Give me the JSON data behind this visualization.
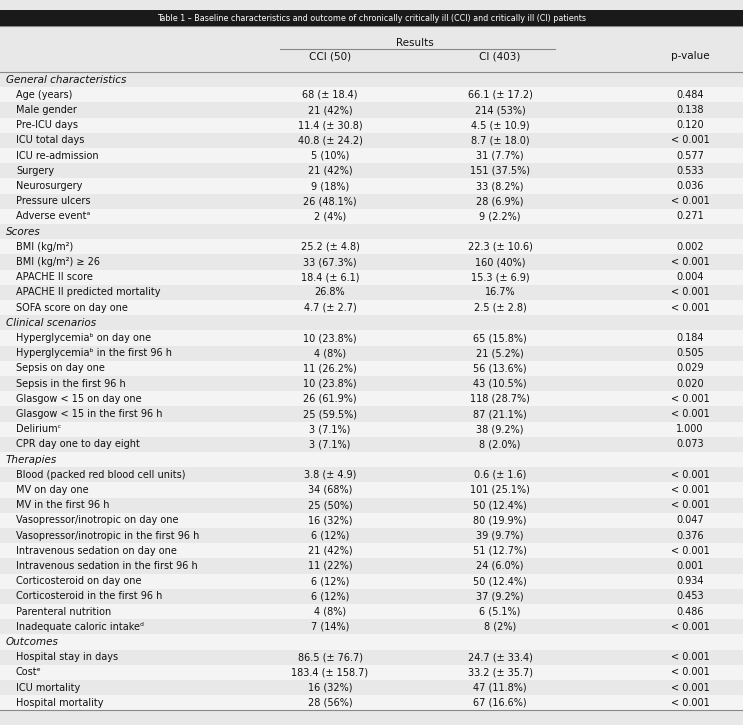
{
  "title": "Table 1 – Baseline characteristics and outcome of chronically critically ill (CCI) and critically ill (CI) patients",
  "header_results": "Results",
  "header_col1": "CCI (50)",
  "header_col2": "CI (403)",
  "header_pval": "p-value",
  "rows": [
    {
      "label": "General characteristics",
      "type": "section",
      "cci": "",
      "ci": "",
      "pval": ""
    },
    {
      "label": "  Age (years)",
      "type": "data",
      "cci": "68 (± 18.4)",
      "ci": "66.1 (± 17.2)",
      "pval": "0.484"
    },
    {
      "label": "  Male gender",
      "type": "data",
      "cci": "21 (42%)",
      "ci": "214 (53%)",
      "pval": "0.138"
    },
    {
      "label": "  Pre-ICU days",
      "type": "data",
      "cci": "11.4 (± 30.8)",
      "ci": "4.5 (± 10.9)",
      "pval": "0.120"
    },
    {
      "label": "  ICU total days",
      "type": "data",
      "cci": "40.8 (± 24.2)",
      "ci": "8.7 (± 18.0)",
      "pval": "< 0.001"
    },
    {
      "label": "  ICU re-admission",
      "type": "data",
      "cci": "5 (10%)",
      "ci": "31 (7.7%)",
      "pval": "0.577"
    },
    {
      "label": "  Surgery",
      "type": "data",
      "cci": "21 (42%)",
      "ci": "151 (37.5%)",
      "pval": "0.533"
    },
    {
      "label": "  Neurosurgery",
      "type": "data",
      "cci": "9 (18%)",
      "ci": "33 (8.2%)",
      "pval": "0.036"
    },
    {
      "label": "  Pressure ulcers",
      "type": "data",
      "cci": "26 (48.1%)",
      "ci": "28 (6.9%)",
      "pval": "< 0.001"
    },
    {
      "label": "  Adverse eventᵃ",
      "type": "data",
      "cci": "2 (4%)",
      "ci": "9 (2.2%)",
      "pval": "0.271"
    },
    {
      "label": "Scores",
      "type": "section",
      "cci": "",
      "ci": "",
      "pval": ""
    },
    {
      "label": "  BMI (kg/m²)",
      "type": "data",
      "cci": "25.2 (± 4.8)",
      "ci": "22.3 (± 10.6)",
      "pval": "0.002"
    },
    {
      "label": "  BMI (kg/m²) ≥ 26",
      "type": "data",
      "cci": "33 (67.3%)",
      "ci": "160 (40%)",
      "pval": "< 0.001"
    },
    {
      "label": "  APACHE II score",
      "type": "data",
      "cci": "18.4 (± 6.1)",
      "ci": "15.3 (± 6.9)",
      "pval": "0.004"
    },
    {
      "label": "  APACHE II predicted mortality",
      "type": "data",
      "cci": "26.8%",
      "ci": "16.7%",
      "pval": "< 0.001"
    },
    {
      "label": "  SOFA score on day one",
      "type": "data",
      "cci": "4.7 (± 2.7)",
      "ci": "2.5 (± 2.8)",
      "pval": "< 0.001"
    },
    {
      "label": "Clinical scenarios",
      "type": "section",
      "cci": "",
      "ci": "",
      "pval": ""
    },
    {
      "label": "  Hyperglycemiaᵇ on day one",
      "type": "data",
      "cci": "10 (23.8%)",
      "ci": "65 (15.8%)",
      "pval": "0.184"
    },
    {
      "label": "  Hyperglycemiaᵇ in the first 96 h",
      "type": "data",
      "cci": "4 (8%)",
      "ci": "21 (5.2%)",
      "pval": "0.505"
    },
    {
      "label": "  Sepsis on day one",
      "type": "data",
      "cci": "11 (26.2%)",
      "ci": "56 (13.6%)",
      "pval": "0.029"
    },
    {
      "label": "  Sepsis in the first 96 h",
      "type": "data",
      "cci": "10 (23.8%)",
      "ci": "43 (10.5%)",
      "pval": "0.020"
    },
    {
      "label": "  Glasgow < 15 on day one",
      "type": "data",
      "cci": "26 (61.9%)",
      "ci": "118 (28.7%)",
      "pval": "< 0.001"
    },
    {
      "label": "  Glasgow < 15 in the first 96 h",
      "type": "data",
      "cci": "25 (59.5%)",
      "ci": "87 (21.1%)",
      "pval": "< 0.001"
    },
    {
      "label": "  Deliriumᶜ",
      "type": "data",
      "cci": "3 (7.1%)",
      "ci": "38 (9.2%)",
      "pval": "1.000"
    },
    {
      "label": "  CPR day one to day eight",
      "type": "data",
      "cci": "3 (7.1%)",
      "ci": "8 (2.0%)",
      "pval": "0.073"
    },
    {
      "label": "Therapies",
      "type": "section",
      "cci": "",
      "ci": "",
      "pval": ""
    },
    {
      "label": "  Blood (packed red blood cell units)",
      "type": "data",
      "cci": "3.8 (± 4.9)",
      "ci": "0.6 (± 1.6)",
      "pval": "< 0.001"
    },
    {
      "label": "  MV on day one",
      "type": "data",
      "cci": "34 (68%)",
      "ci": "101 (25.1%)",
      "pval": "< 0.001"
    },
    {
      "label": "  MV in the first 96 h",
      "type": "data",
      "cci": "25 (50%)",
      "ci": "50 (12.4%)",
      "pval": "< 0.001"
    },
    {
      "label": "  Vasopressor/inotropic on day one",
      "type": "data",
      "cci": "16 (32%)",
      "ci": "80 (19.9%)",
      "pval": "0.047"
    },
    {
      "label": "  Vasopressor/inotropic in the first 96 h",
      "type": "data",
      "cci": "6 (12%)",
      "ci": "39 (9.7%)",
      "pval": "0.376"
    },
    {
      "label": "  Intravenous sedation on day one",
      "type": "data",
      "cci": "21 (42%)",
      "ci": "51 (12.7%)",
      "pval": "< 0.001"
    },
    {
      "label": "  Intravenous sedation in the first 96 h",
      "type": "data",
      "cci": "11 (22%)",
      "ci": "24 (6.0%)",
      "pval": "0.001"
    },
    {
      "label": "  Corticosteroid on day one",
      "type": "data",
      "cci": "6 (12%)",
      "ci": "50 (12.4%)",
      "pval": "0.934"
    },
    {
      "label": "  Corticosteroid in the first 96 h",
      "type": "data",
      "cci": "6 (12%)",
      "ci": "37 (9.2%)",
      "pval": "0.453"
    },
    {
      "label": "  Parenteral nutrition",
      "type": "data",
      "cci": "4 (8%)",
      "ci": "6 (5.1%)",
      "pval": "0.486"
    },
    {
      "label": "  Inadequate caloric intakeᵈ",
      "type": "data",
      "cci": "7 (14%)",
      "ci": "8 (2%)",
      "pval": "< 0.001"
    },
    {
      "label": "Outcomes",
      "type": "section",
      "cci": "",
      "ci": "",
      "pval": ""
    },
    {
      "label": "  Hospital stay in days",
      "type": "data",
      "cci": "86.5 (± 76.7)",
      "ci": "24.7 (± 33.4)",
      "pval": "< 0.001"
    },
    {
      "label": "  Costᵉ",
      "type": "data",
      "cci": "183.4 (± 158.7)",
      "ci": "33.2 (± 35.7)",
      "pval": "< 0.001"
    },
    {
      "label": "  ICU mortality",
      "type": "data",
      "cci": "16 (32%)",
      "ci": "47 (11.8%)",
      "pval": "< 0.001"
    },
    {
      "label": "  Hospital mortality",
      "type": "data",
      "cci": "28 (56%)",
      "ci": "67 (16.6%)",
      "pval": "< 0.001"
    }
  ],
  "bg_color": "#e8e8e8",
  "row_even_color": "#e8e8e8",
  "row_odd_color": "#f4f4f4",
  "section_color": "#111111",
  "data_color": "#111111",
  "line_color": "#888888",
  "title_bg": "#1a1a1a",
  "title_fg": "#ffffff",
  "font_size": 7.0,
  "section_font_size": 7.5,
  "header_font_size": 7.5
}
